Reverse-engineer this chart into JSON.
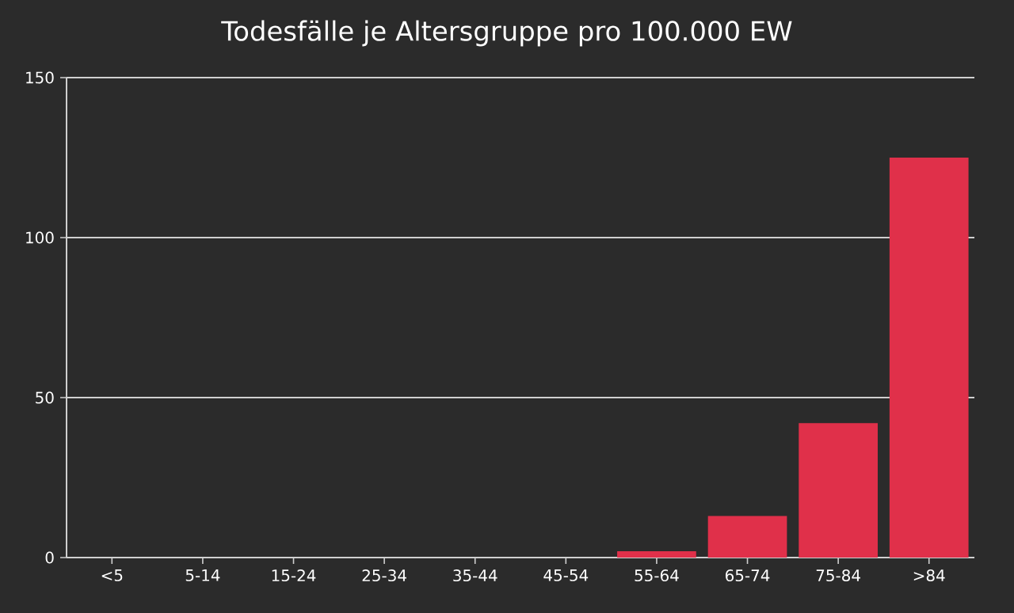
{
  "chart_data": {
    "type": "bar",
    "title": "Todesfälle je Altersgruppe pro 100.000 EW",
    "categories": [
      "<5",
      "5-14",
      "15-24",
      "25-34",
      "35-44",
      "45-54",
      "55-64",
      "65-74",
      "75-84",
      ">84"
    ],
    "values": [
      0,
      0,
      0,
      0,
      0,
      0,
      2,
      13,
      42,
      125
    ],
    "color": "#e0304a",
    "ylim": [
      0,
      150
    ],
    "yticks": [
      0,
      50,
      100,
      150
    ],
    "grid": "y"
  }
}
